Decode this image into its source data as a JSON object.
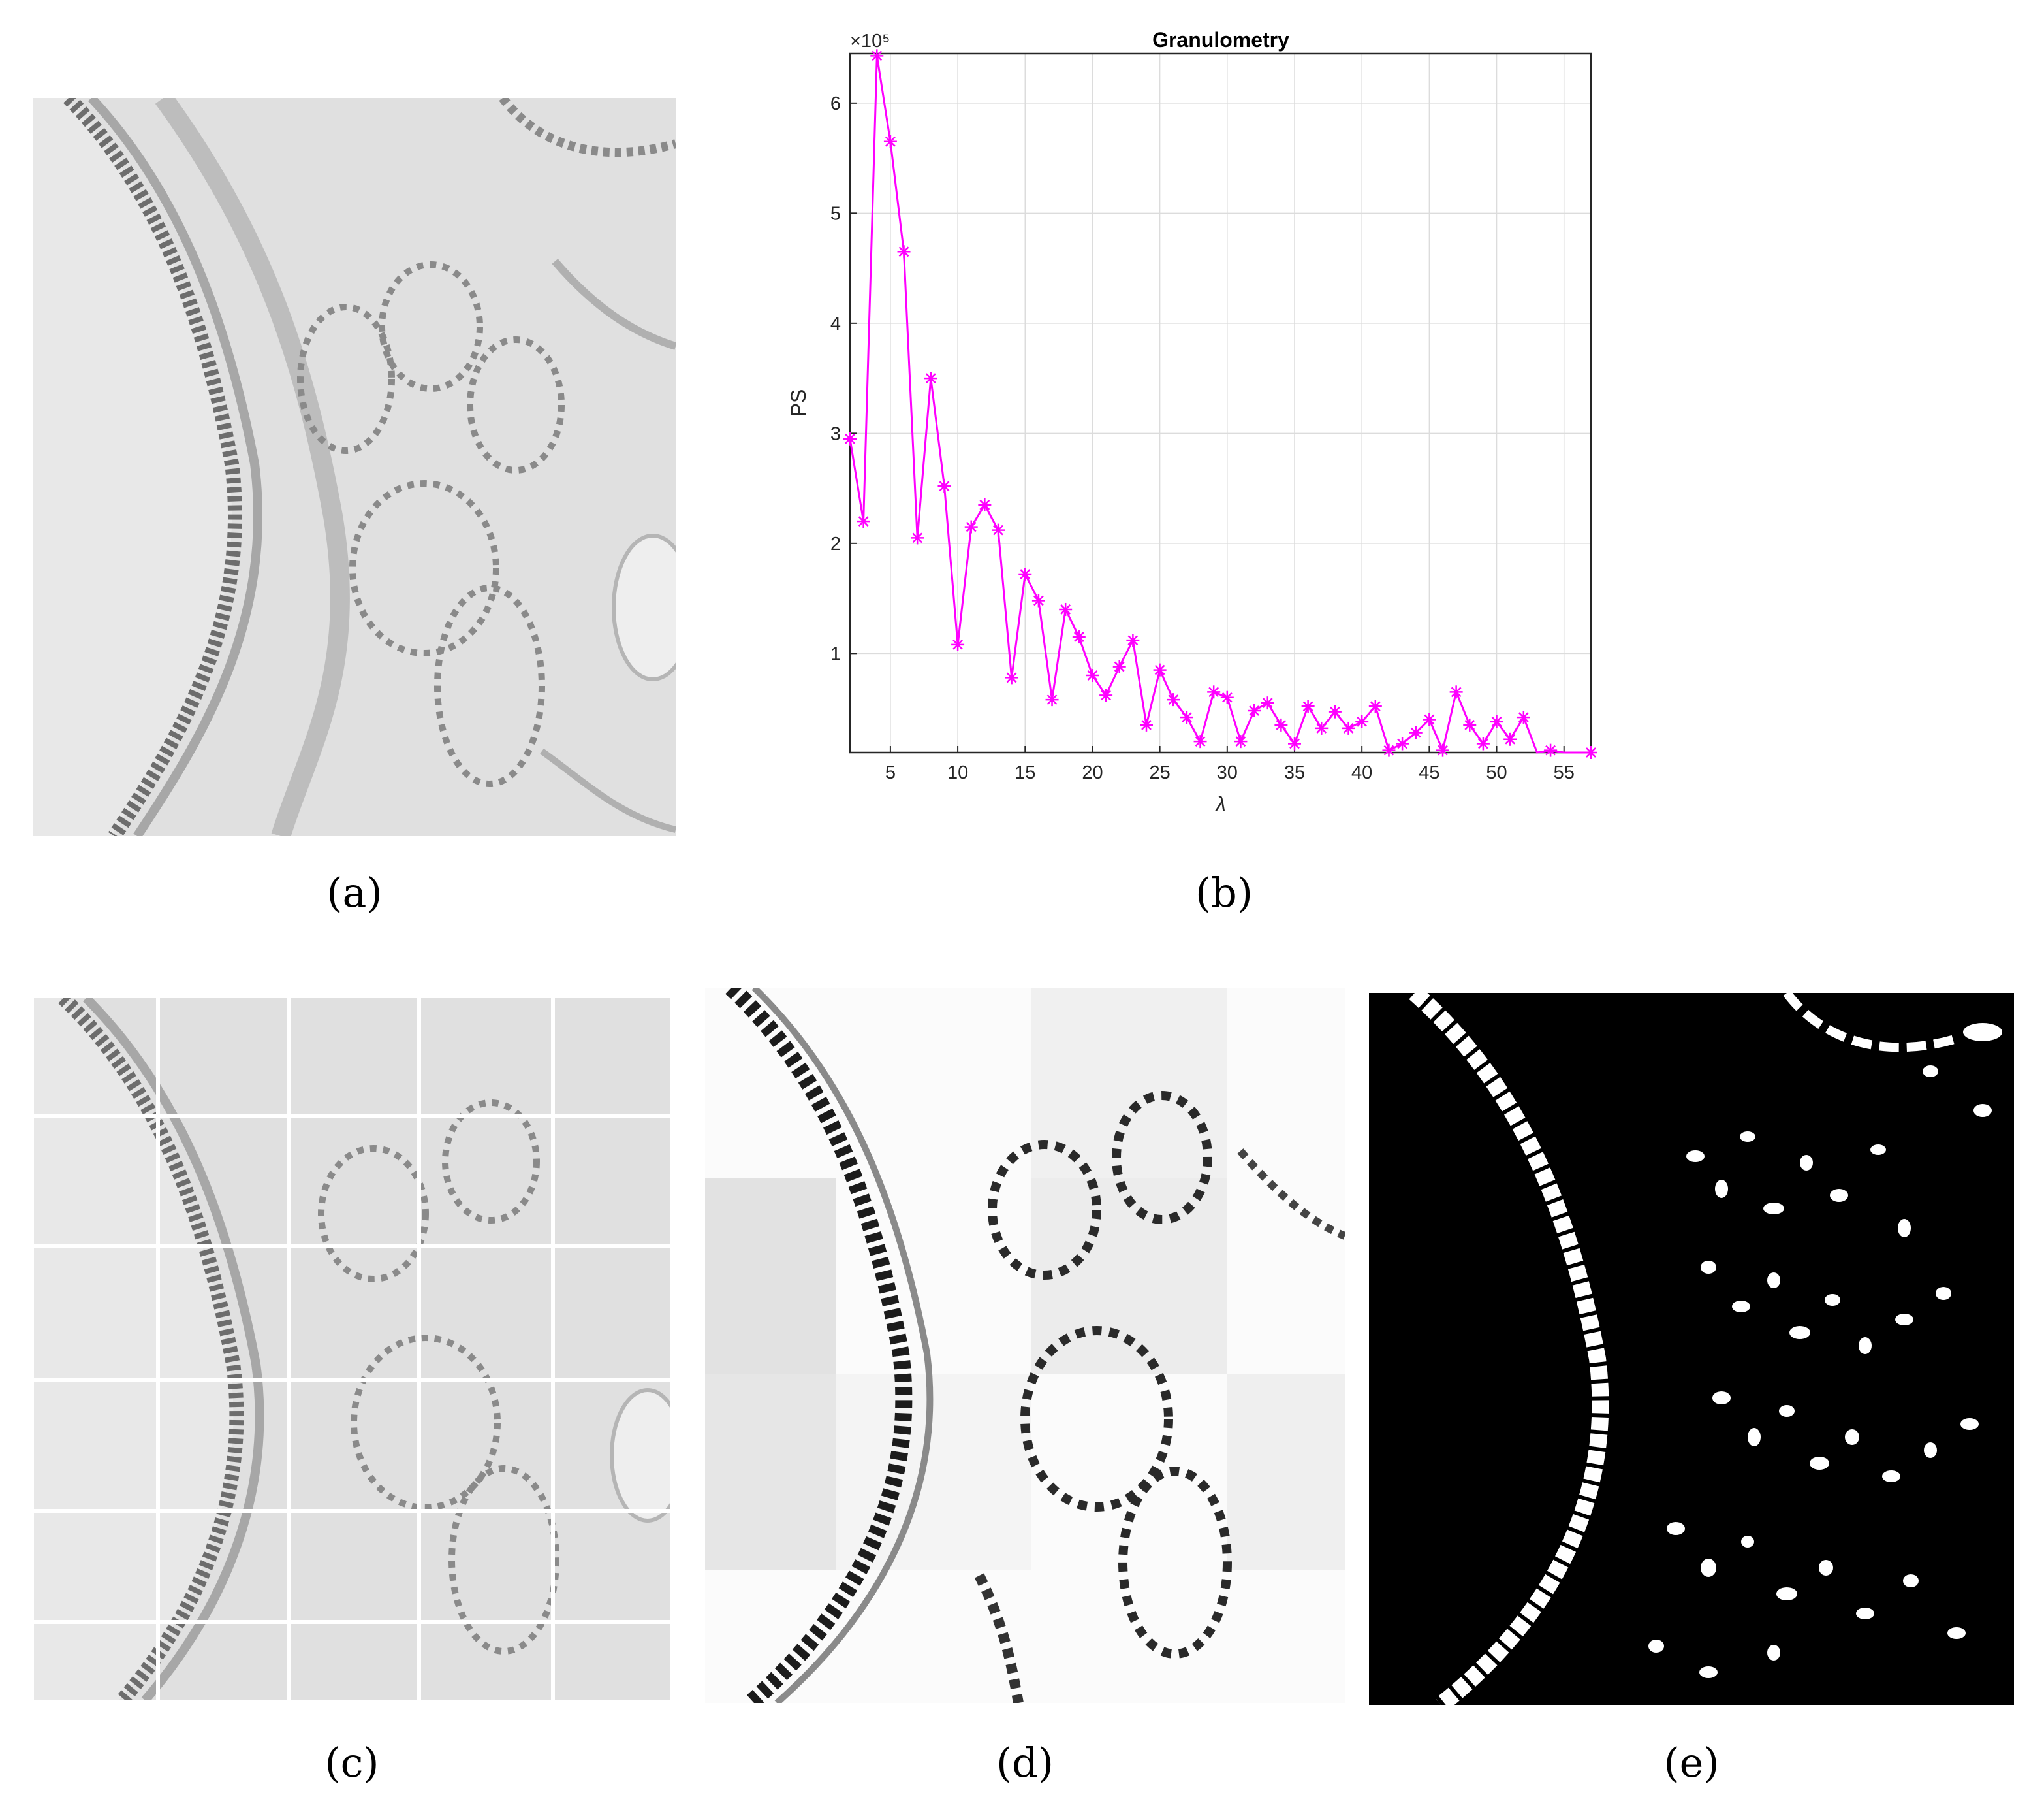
{
  "captions": {
    "a": "(a)",
    "b": "(b)",
    "c": "(c)",
    "d": "(d)",
    "e": "(e)"
  },
  "colors": {
    "series": "#ff00ff",
    "grid": "#dcdcdc",
    "axis": "#262626",
    "tissue_light": "#e6e6e6",
    "tissue_dark": "#777777",
    "binary_bg": "#000000",
    "binary_fg": "#ffffff"
  },
  "chart_data": {
    "type": "line",
    "title": "Granulometry",
    "xlabel": "λ",
    "ylabel": "PS",
    "y_exponent_label": "×10⁵",
    "xlim": [
      2,
      57
    ],
    "ylim": [
      0.1,
      6.45
    ],
    "x_ticks": [
      5,
      10,
      15,
      20,
      25,
      30,
      35,
      40,
      45,
      50,
      55
    ],
    "y_ticks": [
      1,
      2,
      3,
      4,
      5,
      6
    ],
    "grid": true,
    "marker": "asterisk",
    "series": [
      {
        "x": [
          2,
          3,
          4,
          5,
          6,
          7,
          8,
          9,
          10,
          11,
          12,
          13,
          14,
          15,
          16,
          17,
          18,
          19,
          20,
          21,
          22,
          23,
          24,
          25,
          26,
          27,
          28,
          29,
          30,
          31,
          32,
          33,
          34,
          35,
          36,
          37,
          38,
          39,
          40,
          41,
          42,
          43,
          44,
          45,
          46,
          47,
          48,
          49,
          50,
          51,
          52,
          53,
          54,
          55,
          56,
          57
        ],
        "values": [
          2.95,
          2.2,
          6.43,
          5.65,
          4.65,
          2.05,
          3.5,
          2.52,
          1.08,
          2.15,
          2.35,
          2.12,
          0.78,
          1.72,
          1.48,
          0.58,
          1.4,
          1.15,
          0.8,
          0.62,
          0.88,
          1.12,
          0.35,
          0.85,
          0.58,
          0.42,
          0.2,
          0.65,
          0.6,
          0.2,
          0.48,
          0.55,
          0.35,
          0.18,
          0.52,
          0.32,
          0.47,
          0.32,
          0.38,
          0.52,
          0.12,
          0.18,
          0.28,
          0.4,
          0.12,
          0.65,
          0.35,
          0.18,
          0.38,
          0.22,
          0.42,
          0.05,
          0.12,
          0.02,
          0.01,
          0.1
        ]
      }
    ]
  }
}
